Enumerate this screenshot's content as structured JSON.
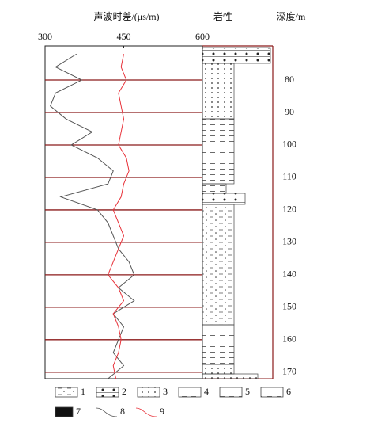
{
  "chart_data": {
    "type": "line",
    "title": "声波时差/(μs/m)",
    "lithology_label": "岩性",
    "depth_label": "深度/m",
    "x": [
      72,
      76,
      80,
      84,
      88,
      92,
      96,
      100,
      104,
      108,
      112,
      116,
      120,
      124,
      128,
      132,
      136,
      140,
      144,
      148,
      152,
      156,
      160,
      164,
      168,
      172
    ],
    "series": [
      {
        "name": "8",
        "color": "#555555",
        "values": [
          360,
          320,
          370,
          320,
          310,
          340,
          390,
          350,
          400,
          430,
          420,
          330,
          400,
          420,
          430,
          440,
          460,
          470,
          440,
          470,
          430,
          450,
          440,
          430,
          450,
          420
        ]
      },
      {
        "name": "9",
        "color": "#e8323a",
        "values": [
          450,
          445,
          455,
          440,
          445,
          450,
          445,
          440,
          455,
          460,
          450,
          445,
          430,
          440,
          450,
          440,
          430,
          420,
          440,
          450,
          430,
          440,
          445,
          440,
          430,
          435
        ]
      }
    ],
    "xlim": [
      300,
      600
    ],
    "xticks": [
      300,
      450,
      600
    ],
    "ylim": [
      69.5,
      172
    ],
    "yticks": [
      80,
      90,
      100,
      110,
      120,
      130,
      140,
      150,
      160,
      170
    ],
    "legend": [
      "1",
      "2",
      "3",
      "4",
      "5",
      "6",
      "7"
    ]
  }
}
